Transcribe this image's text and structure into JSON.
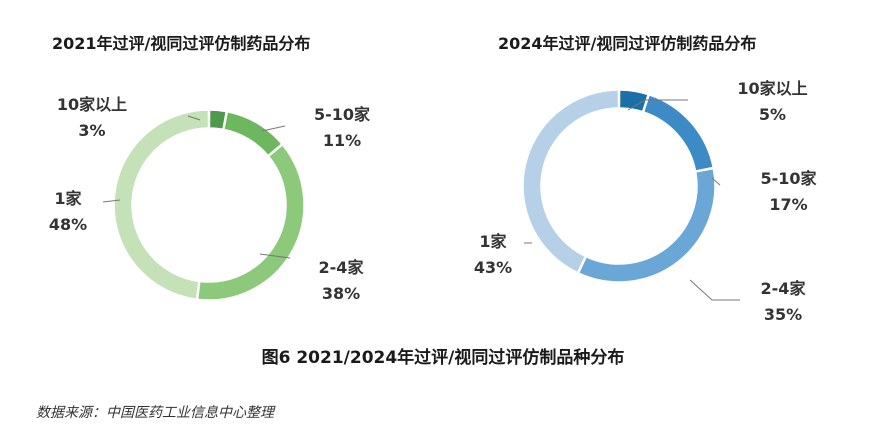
{
  "chart_data": [
    {
      "type": "pie",
      "title": "2021年过评/视同过评仿制药品分布",
      "categories": [
        "10家以上",
        "5-10家",
        "2-4家",
        "1家"
      ],
      "values": [
        3,
        11,
        38,
        48
      ],
      "value_labels": [
        "3%",
        "11%",
        "38%",
        "48%"
      ],
      "colors": [
        "#4e9a4a",
        "#6db85e",
        "#8cc97a",
        "#c5e1b8"
      ]
    },
    {
      "type": "pie",
      "title": "2024年过评/视同过评仿制药品分布",
      "categories": [
        "10家以上",
        "5-10家",
        "2-4家",
        "1家"
      ],
      "values": [
        5,
        17,
        35,
        43
      ],
      "value_labels": [
        "5%",
        "17%",
        "35%",
        "43%"
      ],
      "colors": [
        "#1b6fa8",
        "#3d8bc6",
        "#6aa6d6",
        "#b6d0e8"
      ]
    }
  ],
  "figure_title": "图6 2021/2024年过评/视同过评仿制品种分布",
  "source": "数据来源：中国医药工业信息中心整理"
}
